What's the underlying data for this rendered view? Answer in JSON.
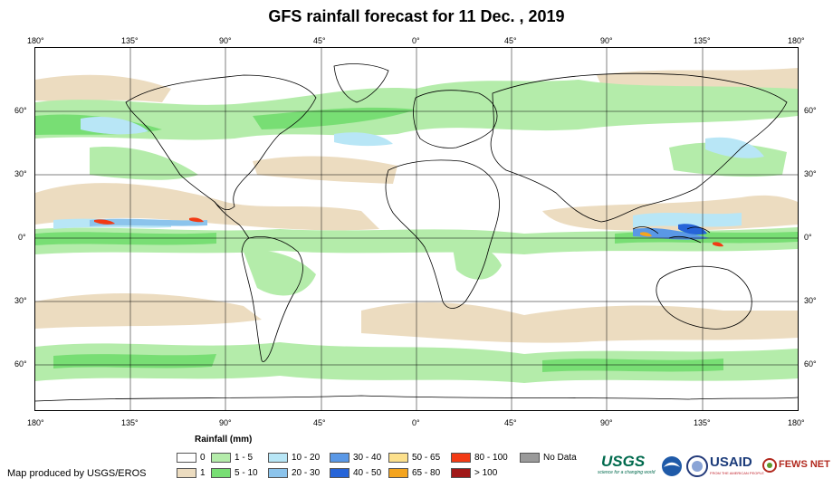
{
  "title": "GFS rainfall forecast for 11 Dec. , 2019",
  "longitude_ticks": [
    "180°",
    "135°",
    "90°",
    "45°",
    "0°",
    "45°",
    "90°",
    "135°",
    "180°"
  ],
  "latitude_ticks": [
    "60°",
    "30°",
    "0°",
    "30°",
    "60°"
  ],
  "legend": {
    "title": "Rainfall (mm)",
    "items": [
      {
        "label": "0",
        "color": "#ffffff"
      },
      {
        "label": "1",
        "color": "#ecdcc0"
      },
      {
        "label": "1 - 5",
        "color": "#b4ecaa"
      },
      {
        "label": "5 - 10",
        "color": "#78de74"
      },
      {
        "label": "10 - 20",
        "color": "#b8e6f6"
      },
      {
        "label": "20 - 30",
        "color": "#8cc4ec"
      },
      {
        "label": "30 - 40",
        "color": "#5a98e6"
      },
      {
        "label": "40 - 50",
        "color": "#2664d8"
      },
      {
        "label": "50 - 65",
        "color": "#fce08c"
      },
      {
        "label": "65 - 80",
        "color": "#f4a41e"
      },
      {
        "label": "80 - 100",
        "color": "#f23a14"
      },
      {
        "label": "> 100",
        "color": "#a01818"
      },
      {
        "label": "No Data",
        "color": "#9a9a9a"
      }
    ]
  },
  "credit": "Map produced by USGS/EROS",
  "logos": {
    "usgs": "USGS",
    "usgs_tagline": "science for a changing world",
    "usaid": "USAID",
    "usaid_tagline": "FROM THE AMERICAN PEOPLE",
    "fews": "FEWS NET"
  }
}
